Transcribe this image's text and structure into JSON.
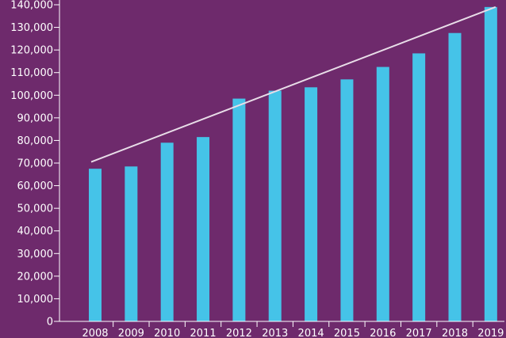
{
  "chart_data": {
    "type": "bar",
    "categories": [
      "2008",
      "2009",
      "2010",
      "2011",
      "2012",
      "2013",
      "2014",
      "2015",
      "2016",
      "2017",
      "2018",
      "2019"
    ],
    "values": [
      67500,
      68500,
      79000,
      81500,
      98500,
      102000,
      103500,
      107000,
      112500,
      118500,
      127500,
      139000
    ],
    "trendline": {
      "x_start": "2008",
      "y_start": 70500,
      "x_end": "2019",
      "y_end": 139000
    },
    "y_ticks": [
      "0",
      "10,000",
      "20,000",
      "30,000",
      "40,000",
      "50,000",
      "60,000",
      "70,000",
      "80,000",
      "90,000",
      "100,000",
      "110,000",
      "120,000",
      "130,000",
      "140,000"
    ],
    "y_tick_values": [
      0,
      10000,
      20000,
      30000,
      40000,
      50000,
      60000,
      70000,
      80000,
      90000,
      100000,
      110000,
      120000,
      130000,
      140000
    ],
    "ylim": [
      0,
      140000
    ],
    "title": "",
    "xlabel": "",
    "ylabel": "",
    "grid": false,
    "colors": {
      "background": "#6e2a6c",
      "bar": "#45c3e8",
      "trendline": "#e8dde8",
      "axis": "#ffffff",
      "text": "#ffffff"
    }
  }
}
